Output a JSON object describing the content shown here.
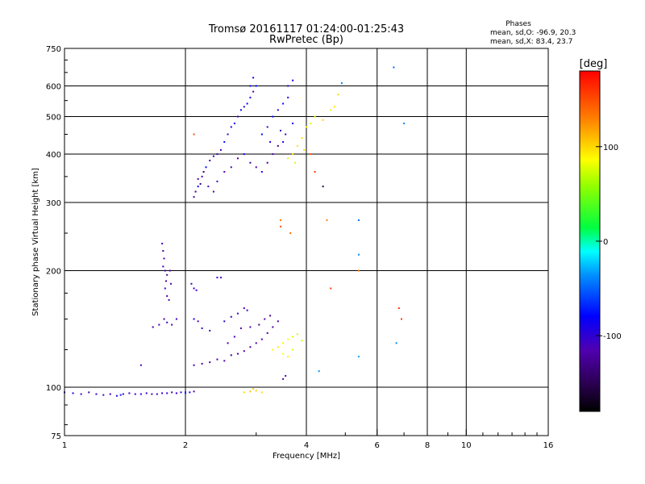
{
  "chart_data": {
    "type": "scatter",
    "title": "Tromsø 20161117 01:24:00-01:25:43",
    "subtitle": "RwPretec (Bp)",
    "xlabel": "Frequency [MHz]",
    "ylabel": "Stationary phase Virtual Height [km]",
    "x_scale": "log",
    "y_scale": "log",
    "xlim": [
      1,
      16
    ],
    "ylim": [
      75,
      750
    ],
    "x_ticks": [
      1,
      2,
      4,
      6,
      8,
      10,
      16
    ],
    "x_tick_labels": [
      "1",
      "2",
      "4",
      "6",
      "8",
      "10",
      "16"
    ],
    "x_minor_ticks": [
      3,
      5,
      7,
      9,
      11,
      12,
      13,
      14,
      15
    ],
    "y_ticks": [
      75,
      100,
      200,
      300,
      400,
      500,
      600,
      750
    ],
    "y_tick_labels": [
      "75",
      "100",
      "200",
      "300",
      "400",
      "500",
      "600",
      "750"
    ],
    "y_minor_ticks": [
      80,
      90,
      125,
      150,
      175,
      250,
      350,
      450,
      550,
      650,
      700
    ],
    "grid": true,
    "phase_stats": {
      "heading": "Phases",
      "line_o": "mean, sd,O: -96.9, 20.3",
      "line_x": "mean, sd,X:  83.4, 23.7"
    },
    "colorbar": {
      "label": "[deg]",
      "range": [
        -180,
        180
      ],
      "ticks": [
        -100,
        0,
        100
      ],
      "tick_labels": [
        "-100",
        "0",
        "100"
      ],
      "colormap": "rainbow (black-purple-blue-cyan-green-yellow-red)"
    },
    "point_color_key": "phase in deg",
    "clusters": [
      {
        "phase": -105,
        "spread": 12,
        "points": [
          [
            1.0,
            97
          ],
          [
            1.05,
            96.5
          ],
          [
            1.1,
            96
          ],
          [
            1.15,
            97
          ],
          [
            1.2,
            96
          ],
          [
            1.25,
            95.5
          ],
          [
            1.3,
            96
          ],
          [
            1.35,
            95
          ],
          [
            1.4,
            96
          ],
          [
            1.45,
            96.5
          ],
          [
            1.5,
            96
          ],
          [
            1.55,
            96
          ],
          [
            1.6,
            96.5
          ],
          [
            1.65,
            96
          ],
          [
            1.7,
            96
          ],
          [
            1.75,
            96.5
          ],
          [
            1.8,
            96.5
          ],
          [
            1.85,
            97
          ],
          [
            1.9,
            96.5
          ],
          [
            1.95,
            97
          ],
          [
            2.0,
            97
          ],
          [
            2.05,
            97
          ],
          [
            2.1,
            97.5
          ]
        ]
      },
      {
        "phase": -70,
        "spread": 10,
        "points": [
          [
            1.38,
            95.5
          ],
          [
            2.0,
            96.5
          ]
        ]
      },
      {
        "phase": -115,
        "spread": 12,
        "points": [
          [
            1.75,
            235
          ],
          [
            1.76,
            225
          ],
          [
            1.77,
            215
          ],
          [
            1.76,
            205
          ],
          [
            1.78,
            200
          ],
          [
            1.8,
            195
          ],
          [
            1.79,
            188
          ],
          [
            1.78,
            180
          ],
          [
            1.8,
            172
          ],
          [
            1.82,
            168
          ],
          [
            1.84,
            185
          ],
          [
            1.83,
            200
          ],
          [
            1.77,
            150
          ],
          [
            1.8,
            147
          ],
          [
            1.85,
            145
          ],
          [
            1.72,
            145
          ],
          [
            1.9,
            150
          ],
          [
            1.66,
            143
          ]
        ]
      },
      {
        "phase": -105,
        "spread": 12,
        "points": [
          [
            2.07,
            185
          ],
          [
            2.1,
            180
          ],
          [
            2.13,
            178
          ],
          [
            2.4,
            192
          ],
          [
            2.45,
            192
          ],
          [
            2.1,
            150
          ],
          [
            2.15,
            148
          ],
          [
            2.2,
            142
          ],
          [
            2.3,
            140
          ],
          [
            2.5,
            148
          ],
          [
            2.6,
            152
          ],
          [
            2.7,
            155
          ],
          [
            2.8,
            160
          ],
          [
            2.85,
            158
          ],
          [
            1.55,
            114
          ]
        ]
      },
      {
        "phase": -120,
        "spread": 12,
        "points": [
          [
            2.1,
            114
          ],
          [
            2.2,
            115
          ],
          [
            2.3,
            116
          ],
          [
            2.4,
            118
          ],
          [
            2.5,
            117
          ],
          [
            2.6,
            121
          ],
          [
            2.7,
            122
          ],
          [
            2.8,
            124
          ],
          [
            2.9,
            127
          ],
          [
            3.0,
            130
          ],
          [
            3.1,
            133
          ],
          [
            3.2,
            138
          ],
          [
            3.3,
            143
          ],
          [
            2.55,
            130
          ],
          [
            2.65,
            135
          ],
          [
            2.75,
            142
          ],
          [
            2.9,
            143
          ],
          [
            3.05,
            145
          ],
          [
            3.15,
            150
          ],
          [
            3.25,
            153
          ],
          [
            3.4,
            148
          ],
          [
            3.5,
            105
          ],
          [
            3.55,
            107
          ]
        ]
      },
      {
        "phase": -95,
        "spread": 20,
        "points": [
          [
            2.15,
            330
          ],
          [
            2.2,
            350
          ],
          [
            2.25,
            370
          ],
          [
            2.3,
            385
          ],
          [
            2.35,
            395
          ],
          [
            2.4,
            400
          ],
          [
            2.45,
            410
          ],
          [
            2.5,
            430
          ],
          [
            2.55,
            450
          ],
          [
            2.6,
            470
          ],
          [
            2.7,
            500
          ],
          [
            2.8,
            530
          ],
          [
            2.9,
            560
          ],
          [
            2.95,
            580
          ],
          [
            3.0,
            600
          ],
          [
            2.65,
            480
          ],
          [
            2.75,
            520
          ],
          [
            2.85,
            540
          ],
          [
            2.9,
            600
          ],
          [
            2.95,
            630
          ]
        ]
      },
      {
        "phase": -115,
        "spread": 20,
        "points": [
          [
            2.1,
            310
          ],
          [
            2.12,
            320
          ],
          [
            2.15,
            345
          ],
          [
            2.18,
            335
          ],
          [
            2.22,
            360
          ],
          [
            2.28,
            330
          ],
          [
            2.35,
            320
          ],
          [
            2.4,
            340
          ],
          [
            2.5,
            360
          ],
          [
            2.6,
            370
          ],
          [
            2.7,
            390
          ],
          [
            2.8,
            400
          ],
          [
            2.9,
            380
          ],
          [
            3.0,
            370
          ],
          [
            3.1,
            360
          ],
          [
            3.2,
            380
          ],
          [
            3.3,
            400
          ],
          [
            3.4,
            420
          ],
          [
            3.5,
            430
          ],
          [
            3.55,
            450
          ]
        ]
      },
      {
        "phase": -90,
        "spread": 15,
        "points": [
          [
            3.1,
            450
          ],
          [
            3.2,
            470
          ],
          [
            3.3,
            500
          ],
          [
            3.4,
            520
          ],
          [
            3.5,
            540
          ],
          [
            3.6,
            560
          ],
          [
            3.7,
            480
          ],
          [
            3.25,
            430
          ],
          [
            3.45,
            460
          ],
          [
            3.6,
            600
          ],
          [
            3.7,
            620
          ]
        ]
      },
      {
        "phase": 90,
        "spread": 15,
        "points": [
          [
            3.6,
            390
          ],
          [
            3.7,
            400
          ],
          [
            3.8,
            420
          ],
          [
            3.9,
            440
          ],
          [
            4.0,
            470
          ],
          [
            4.1,
            480
          ],
          [
            4.2,
            500
          ],
          [
            4.4,
            490
          ],
          [
            4.6,
            520
          ],
          [
            4.7,
            530
          ],
          [
            4.8,
            570
          ],
          [
            3.75,
            380
          ],
          [
            3.95,
            410
          ]
        ]
      },
      {
        "phase": 80,
        "spread": 12,
        "points": [
          [
            3.3,
            125
          ],
          [
            3.4,
            127
          ],
          [
            3.5,
            130
          ],
          [
            3.6,
            133
          ],
          [
            3.7,
            135
          ],
          [
            3.8,
            137
          ],
          [
            3.5,
            122
          ],
          [
            3.6,
            120
          ],
          [
            3.7,
            125
          ],
          [
            3.9,
            132
          ]
        ]
      },
      {
        "phase": 100,
        "spread": 10,
        "points": [
          [
            2.8,
            97
          ],
          [
            2.9,
            97.5
          ],
          [
            3.0,
            98
          ],
          [
            3.1,
            97
          ],
          [
            2.95,
            99
          ]
        ]
      },
      {
        "phase": 140,
        "spread": 20,
        "points": [
          [
            2.1,
            450
          ],
          [
            3.45,
            270
          ],
          [
            3.45,
            260
          ],
          [
            3.65,
            250
          ],
          [
            4.5,
            270
          ],
          [
            5.4,
            200
          ],
          [
            6.8,
            160
          ],
          [
            6.9,
            150
          ],
          [
            4.1,
            400
          ],
          [
            4.2,
            360
          ],
          [
            4.6,
            180
          ]
        ]
      },
      {
        "phase": -40,
        "spread": 10,
        "points": [
          [
            5.4,
            270
          ],
          [
            5.4,
            220
          ],
          [
            6.6,
            670
          ],
          [
            7.0,
            480
          ],
          [
            6.7,
            130
          ],
          [
            4.3,
            110
          ],
          [
            5.4,
            120
          ],
          [
            4.9,
            610
          ]
        ]
      },
      {
        "phase": -150,
        "spread": 5,
        "points": [
          [
            4.4,
            330
          ]
        ]
      }
    ]
  }
}
